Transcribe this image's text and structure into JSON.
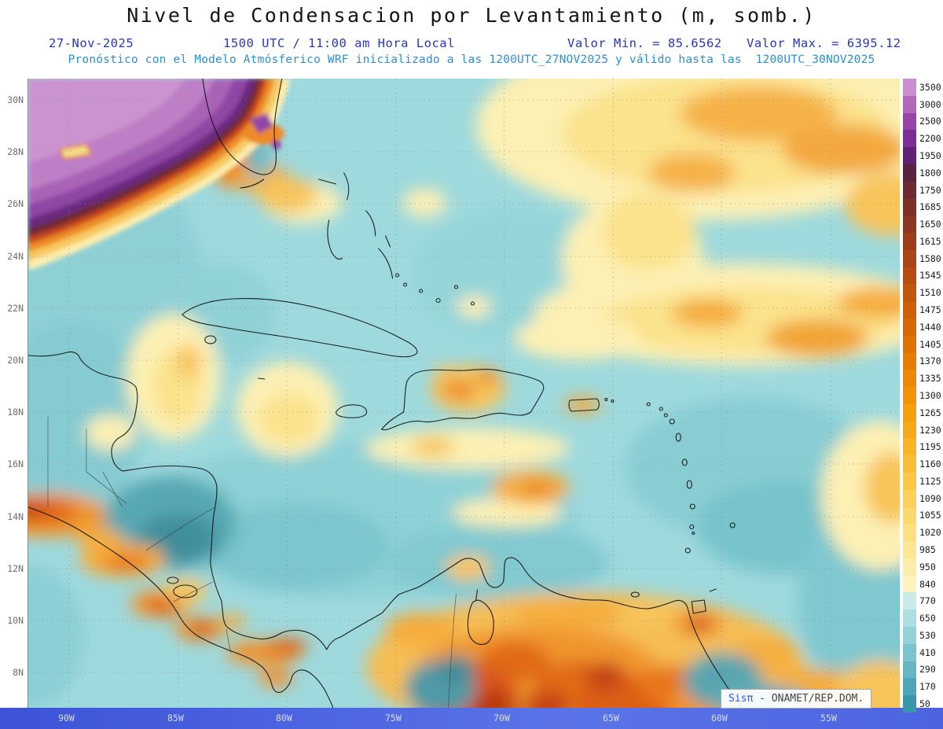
{
  "title": "Nivel de Condensacion por Levantamiento (m, somb.)",
  "header": {
    "date": "27-Nov-2025",
    "time": "1500 UTC / 11:00 am Hora Local",
    "valor_min": "Valor Min. = 85.6562",
    "valor_max": "Valor Max. = 6395.12",
    "forecast": "Pronóstico con el Modelo Atmósferico WRF inicializado a las 1200UTC_27NOV2025 y válido hasta las  1200UTC_30NOV2025"
  },
  "axes": {
    "lat": [
      "30N",
      "28N",
      "26N",
      "24N",
      "22N",
      "20N",
      "18N",
      "16N",
      "14N",
      "12N",
      "10N",
      "8N"
    ],
    "lon": [
      "90W",
      "85W",
      "80W",
      "75W",
      "70W",
      "65W",
      "60W",
      "55W"
    ]
  },
  "colorbar": {
    "labels": [
      "3500",
      "3000",
      "2500",
      "2200",
      "1950",
      "1800",
      "1750",
      "1685",
      "1650",
      "1615",
      "1580",
      "1545",
      "1510",
      "1475",
      "1440",
      "1405",
      "1370",
      "1335",
      "1300",
      "1265",
      "1230",
      "1195",
      "1160",
      "1125",
      "1090",
      "1055",
      "1020",
      "985",
      "950",
      "840",
      "770",
      "650",
      "530",
      "410",
      "290",
      "170",
      "50"
    ],
    "colors": [
      "#ca8fce",
      "#b168bb",
      "#9844a8",
      "#7c2f94",
      "#5e2375",
      "#5a2340",
      "#6e2a33",
      "#7e3028",
      "#8d3722",
      "#9c3e1c",
      "#aa4616",
      "#b74e11",
      "#c2570c",
      "#cd6008",
      "#d66905",
      "#de7303",
      "#e57d03",
      "#eb8805",
      "#f09309",
      "#f49e10",
      "#f7a91a",
      "#f9b327",
      "#fbbd36",
      "#fcc747",
      "#fdd059",
      "#fdd86c",
      "#fee080",
      "#fee794",
      "#feeda8",
      "#fef3bd",
      "#c8ebea",
      "#addfe2",
      "#93d3d8",
      "#7ac5cd",
      "#63b6c2",
      "#4da7b6",
      "#3997aa"
    ]
  },
  "attribution": {
    "brand": "Sisπ",
    "text": "- ONAMET/REP.DOM."
  },
  "chart_data": {
    "type": "heatmap",
    "title": "Nivel de Condensacion por Levantamiento (m, somb.)",
    "units": "m",
    "value_min": 85.6562,
    "value_max": 6395.12,
    "valid_time": "27-Nov-2025 1500 UTC / 11:00 am Hora Local",
    "model_run": "WRF inicializado 1200UTC_27NOV2025, válido hasta 1200UTC_30NOV2025",
    "lat_range": [
      "8N",
      "30N"
    ],
    "lon_range": [
      "90W",
      "55W"
    ],
    "levels": [
      50,
      170,
      290,
      410,
      530,
      650,
      770,
      840,
      950,
      985,
      1020,
      1055,
      1090,
      1125,
      1160,
      1195,
      1230,
      1265,
      1300,
      1335,
      1370,
      1405,
      1440,
      1475,
      1510,
      1545,
      1580,
      1615,
      1650,
      1685,
      1750,
      1800,
      1950,
      2200,
      2500,
      3000,
      3500
    ],
    "regions": [
      {
        "area": "noroeste (sureste de EE.UU. / norte del Golfo)",
        "approx_value": "2500-3500+"
      },
      {
        "area": "Atlántico nordeste (24N-30N, 55W-70W)",
        "approx_value": "950-1450"
      },
      {
        "area": "banda Atlántico central (21N-23N, 55W-68W)",
        "approx_value": "950-1300"
      },
      {
        "area": "mar Caribe central y Bahamas",
        "approx_value": "400-800"
      },
      {
        "area": "La Española y Puerto Rico (montañas)",
        "approx_value": "1100-1500"
      },
      {
        "area": "costa norte de Sudamérica (Colombia/Venezuela)",
        "approx_value": "1300-1800"
      },
      {
        "area": "costa Pacífica de Centroamérica",
        "approx_value": "1300-1700"
      },
      {
        "area": "interior de Honduras/Nicaragua y Andes colombianos",
        "approx_value": "150-500"
      }
    ],
    "legend_position": "right",
    "grid": "dotted 2° lat x 5° lon"
  }
}
